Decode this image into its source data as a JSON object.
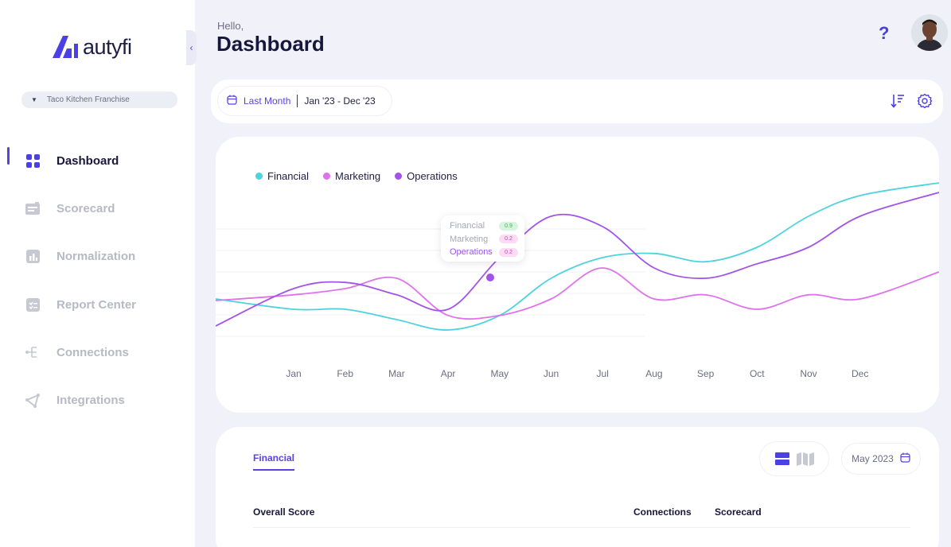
{
  "app": {
    "brand": "autyfi"
  },
  "sidebar": {
    "collapse_icon": "chevron-left-icon",
    "org_selector": "Taco Kitchen Franchise",
    "items": [
      {
        "label": "Dashboard",
        "icon": "grid-icon",
        "active": true
      },
      {
        "label": "Scorecard",
        "icon": "scorecard-icon"
      },
      {
        "label": "Normalization",
        "icon": "bar-chart-icon"
      },
      {
        "label": "Report Center",
        "icon": "report-icon"
      },
      {
        "label": "Connections",
        "icon": "connections-icon"
      },
      {
        "label": "Integrations",
        "icon": "integrations-icon"
      }
    ]
  },
  "header": {
    "greeting": "Hello,",
    "title": "Dashboard"
  },
  "filter": {
    "preset": "Last Month",
    "range": "Jan '23 - Dec '23"
  },
  "colors": {
    "accent": "#5a42e0",
    "financial": "#4ed3de",
    "marketing": "#df72ec",
    "operations": "#a254e8"
  },
  "chart_data": {
    "type": "line",
    "legend": [
      "Financial",
      "Marketing",
      "Operations"
    ],
    "legend_position": "top-left",
    "categories": [
      "Jan",
      "Feb",
      "Mar",
      "Apr",
      "May",
      "Jun",
      "Jul",
      "Aug",
      "Sep",
      "Oct",
      "Nov",
      "Dec"
    ],
    "series": [
      {
        "name": "Financial",
        "values": [
          0.05,
          0.05,
          0.0,
          -0.05,
          0.02,
          0.2,
          0.3,
          0.32,
          0.28,
          0.35,
          0.5,
          0.6
        ]
      },
      {
        "name": "Marketing",
        "values": [
          0.12,
          0.15,
          0.2,
          0.02,
          0.02,
          0.1,
          0.25,
          0.1,
          0.12,
          0.05,
          0.12,
          0.1
        ]
      },
      {
        "name": "Operations",
        "values": [
          0.15,
          0.18,
          0.12,
          0.05,
          0.3,
          0.5,
          0.45,
          0.25,
          0.2,
          0.27,
          0.35,
          0.5
        ]
      }
    ],
    "grid": true,
    "tooltip": {
      "rows": [
        {
          "name": "Financial",
          "value": "0.9"
        },
        {
          "name": "Marketing",
          "value": "0.2"
        },
        {
          "name": "Operations",
          "value": "0.2"
        }
      ]
    }
  },
  "bottom": {
    "tab": "Financial",
    "month": "May 2023",
    "columns": [
      "Overall Score",
      "Connections",
      "Scorecard"
    ]
  }
}
